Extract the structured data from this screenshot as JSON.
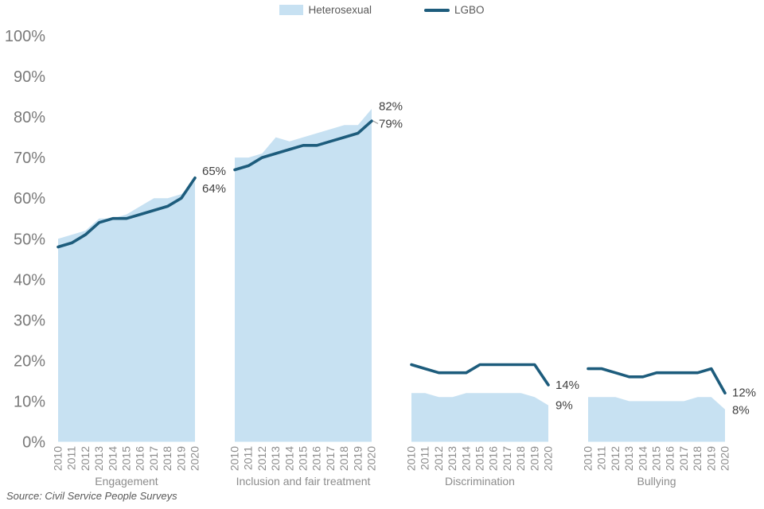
{
  "legend": {
    "items": [
      {
        "label": "Heterosexual",
        "swatch": "area",
        "color": "#c7e1f2"
      },
      {
        "label": "LGBO",
        "swatch": "line",
        "color": "#1d5c7c"
      }
    ]
  },
  "source_note": "Source: Civil Service People Surveys",
  "chart_data": {
    "type": "area",
    "title": "",
    "x": [
      2010,
      2011,
      2012,
      2013,
      2014,
      2015,
      2016,
      2017,
      2018,
      2019,
      2020
    ],
    "ylim": [
      0,
      100
    ],
    "ytick_labels": [
      "0%",
      "10%",
      "20%",
      "30%",
      "40%",
      "50%",
      "60%",
      "70%",
      "80%",
      "90%",
      "100%"
    ],
    "grid": false,
    "legend_position": "top",
    "colors": {
      "heterosexual_area": "#c7e1f2",
      "lgbo_line": "#1d5c7c"
    },
    "series_names": [
      "Heterosexual",
      "LGBO"
    ],
    "panels": [
      {
        "label": "Engagement",
        "series": [
          {
            "name": "Heterosexual",
            "type": "area",
            "values": [
              50,
              51,
              52,
              55,
              55,
              56,
              58,
              60,
              60,
              61,
              64
            ]
          },
          {
            "name": "LGBO",
            "type": "line",
            "values": [
              48,
              49,
              51,
              54,
              55,
              55,
              56,
              57,
              58,
              60,
              65
            ]
          }
        ],
        "end_labels": [
          {
            "series": "LGBO",
            "text": "65%"
          },
          {
            "series": "Heterosexual",
            "text": "64%"
          }
        ]
      },
      {
        "label": "Inclusion and fair treatment",
        "series": [
          {
            "name": "Heterosexual",
            "type": "area",
            "values": [
              70,
              70,
              71,
              75,
              74,
              75,
              76,
              77,
              78,
              78,
              82
            ]
          },
          {
            "name": "LGBO",
            "type": "line",
            "values": [
              67,
              68,
              70,
              71,
              72,
              73,
              73,
              74,
              75,
              76,
              79
            ]
          }
        ],
        "end_labels": [
          {
            "series": "Heterosexual",
            "text": "82%"
          },
          {
            "series": "LGBO",
            "text": "79%",
            "leader": true
          }
        ]
      },
      {
        "label": "Discrimination",
        "series": [
          {
            "name": "Heterosexual",
            "type": "area",
            "values": [
              12,
              12,
              11,
              11,
              12,
              12,
              12,
              12,
              12,
              11,
              9
            ]
          },
          {
            "name": "LGBO",
            "type": "line",
            "values": [
              19,
              18,
              17,
              17,
              17,
              19,
              19,
              19,
              19,
              19,
              14
            ]
          }
        ],
        "end_labels": [
          {
            "series": "LGBO",
            "text": "14%"
          },
          {
            "series": "Heterosexual",
            "text": "9%"
          }
        ]
      },
      {
        "label": "Bullying",
        "series": [
          {
            "name": "Heterosexual",
            "type": "area",
            "values": [
              11,
              11,
              11,
              10,
              10,
              10,
              10,
              10,
              11,
              11,
              8
            ]
          },
          {
            "name": "LGBO",
            "type": "line",
            "values": [
              18,
              18,
              17,
              16,
              16,
              17,
              17,
              17,
              17,
              18,
              12
            ]
          }
        ],
        "end_labels": [
          {
            "series": "LGBO",
            "text": "12%"
          },
          {
            "series": "Heterosexual",
            "text": "8%"
          }
        ]
      }
    ]
  }
}
